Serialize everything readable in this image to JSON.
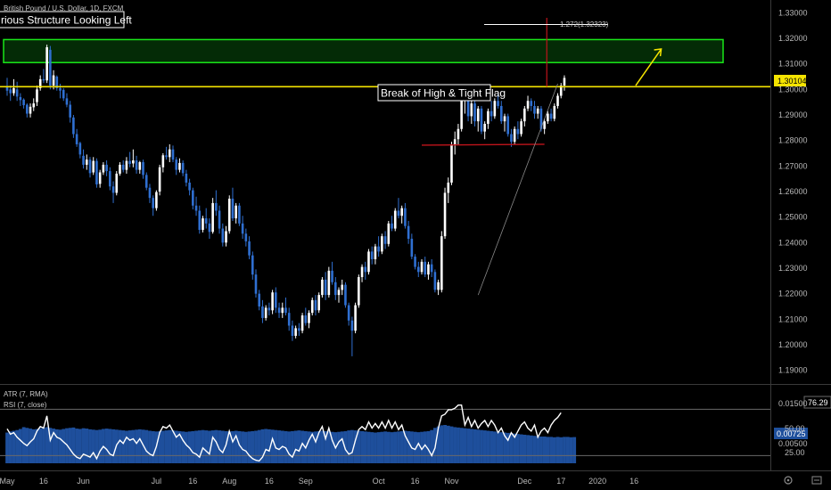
{
  "symbol_title": "British Pound / U.S. Dollar, 1D, FXCM",
  "colors": {
    "background": "#000000",
    "candle_up": "#ffffff",
    "candle_down": "#2f6fd1",
    "trend_line": "#f5e400",
    "zone_border": "#19e619",
    "zone_fill": "#0b7a12",
    "support_line": "#c0141b",
    "target_line": "#c0141b",
    "atr_fill": "#1e4f9c",
    "rsi_line": "#ffffff",
    "axis_text": "#b8b8b8"
  },
  "annotations": {
    "previous_structure": "rious Structure Looking Left",
    "break_label": "Break of High & Tight Flag",
    "fib_label": "1.272(1.32323)"
  },
  "price_badge": "1.30104",
  "indicators": {
    "atr_label": "ATR (7, RMA)",
    "rsi_label": "RSI (7, close)",
    "rsi_value_badge": "76.29",
    "atr_value_badge": "0.00725",
    "scale_labels": [
      "0.01500",
      "50.00",
      "0.00500",
      "25.00"
    ]
  },
  "bottom_icons": [
    "settings-icon",
    "auto-scale-icon"
  ],
  "chart_data": {
    "type": "candlestick",
    "title": "British Pound / U.S. Dollar, 1D, FXCM",
    "y_range": [
      1.185,
      1.335
    ],
    "y_ticks": [
      "1.33000",
      "1.32000",
      "1.31000",
      "1.30000",
      "1.29000",
      "1.28000",
      "1.27000",
      "1.26000",
      "1.25000",
      "1.24000",
      "1.23000",
      "1.22000",
      "1.21000",
      "1.20000",
      "1.19000"
    ],
    "x_ticks": [
      "May",
      "16",
      "Jun",
      "Jul",
      "16",
      "Aug",
      "16",
      "Sep",
      "Oct",
      "16",
      "Nov",
      "Dec",
      "17",
      "2020",
      "16"
    ],
    "x_tick_positions_index": [
      0,
      11,
      23,
      45,
      56,
      67,
      79,
      90,
      112,
      123,
      134,
      156,
      167,
      178,
      189
    ],
    "horizontal_level": 1.30104,
    "resistance_zone": [
      1.3105,
      1.3195
    ],
    "support_line": {
      "start_index": 125,
      "end_index": 162,
      "start_price": 1.2785,
      "end_price": 1.2785
    },
    "candles_ohlc": [
      [
        1.301,
        1.3045,
        1.2975,
        1.2995
      ],
      [
        1.3,
        1.3015,
        1.2955,
        1.2985
      ],
      [
        1.2985,
        1.304,
        1.2975,
        1.3005
      ],
      [
        1.3,
        1.303,
        1.2955,
        1.2972
      ],
      [
        1.297,
        1.2985,
        1.2935,
        1.2958
      ],
      [
        1.296,
        1.2965,
        1.2925,
        1.2938
      ],
      [
        1.294,
        1.2945,
        1.289,
        1.2905
      ],
      [
        1.2905,
        1.2945,
        1.289,
        1.2932
      ],
      [
        1.293,
        1.2965,
        1.2915,
        1.2945
      ],
      [
        1.295,
        1.3015,
        1.2935,
        1.3
      ],
      [
        1.3005,
        1.3055,
        1.2995,
        1.304
      ],
      [
        1.304,
        1.308,
        1.3025,
        1.3035
      ],
      [
        1.3035,
        1.3175,
        1.3025,
        1.3165
      ],
      [
        1.3155,
        1.317,
        1.3,
        1.3015
      ],
      [
        1.3015,
        1.3075,
        1.3,
        1.3055
      ],
      [
        1.305,
        1.3055,
        1.2995,
        1.3005
      ],
      [
        1.3005,
        1.3022,
        1.2965,
        1.2995
      ],
      [
        1.2998,
        1.3005,
        1.2955,
        1.2965
      ],
      [
        1.2965,
        1.2985,
        1.293,
        1.294
      ],
      [
        1.294,
        1.2955,
        1.287,
        1.289
      ],
      [
        1.289,
        1.29,
        1.281,
        1.2825
      ],
      [
        1.2825,
        1.2845,
        1.2775,
        1.2785
      ],
      [
        1.279,
        1.2795,
        1.273,
        1.2745
      ],
      [
        1.274,
        1.2765,
        1.269,
        1.2705
      ],
      [
        1.2705,
        1.2745,
        1.2685,
        1.2725
      ],
      [
        1.2725,
        1.2735,
        1.2655,
        1.2672
      ],
      [
        1.2675,
        1.2735,
        1.2665,
        1.272
      ],
      [
        1.272,
        1.273,
        1.2615,
        1.2628
      ],
      [
        1.263,
        1.2685,
        1.2615,
        1.2675
      ],
      [
        1.2675,
        1.2715,
        1.2665,
        1.2705
      ],
      [
        1.2705,
        1.2722,
        1.266,
        1.268
      ],
      [
        1.268,
        1.2695,
        1.2605,
        1.262
      ],
      [
        1.262,
        1.264,
        1.2555,
        1.2595
      ],
      [
        1.2595,
        1.268,
        1.2585,
        1.267
      ],
      [
        1.267,
        1.2715,
        1.2662,
        1.2705
      ],
      [
        1.2705,
        1.2722,
        1.2675,
        1.2685
      ],
      [
        1.2685,
        1.2735,
        1.267,
        1.272
      ],
      [
        1.272,
        1.2755,
        1.2695,
        1.2708
      ],
      [
        1.271,
        1.2765,
        1.2695,
        1.2722
      ],
      [
        1.2722,
        1.274,
        1.267,
        1.2685
      ],
      [
        1.2685,
        1.272,
        1.267,
        1.2715
      ],
      [
        1.2715,
        1.2725,
        1.265,
        1.2665
      ],
      [
        1.2665,
        1.2675,
        1.2605,
        1.2615
      ],
      [
        1.2615,
        1.263,
        1.2555,
        1.2575
      ],
      [
        1.2575,
        1.2585,
        1.2505,
        1.2535
      ],
      [
        1.2535,
        1.2605,
        1.2525,
        1.2598
      ],
      [
        1.26,
        1.2705,
        1.2585,
        1.2695
      ],
      [
        1.2695,
        1.275,
        1.2675,
        1.2742
      ],
      [
        1.2742,
        1.2775,
        1.2725,
        1.2735
      ],
      [
        1.2735,
        1.2785,
        1.2715,
        1.2765
      ],
      [
        1.2765,
        1.278,
        1.2715,
        1.2725
      ],
      [
        1.2725,
        1.2735,
        1.2665,
        1.2685
      ],
      [
        1.2685,
        1.273,
        1.2675,
        1.2712
      ],
      [
        1.2712,
        1.2722,
        1.266,
        1.2672
      ],
      [
        1.267,
        1.2685,
        1.262,
        1.2635
      ],
      [
        1.2635,
        1.265,
        1.2585,
        1.2605
      ],
      [
        1.2605,
        1.2615,
        1.253,
        1.2545
      ],
      [
        1.2545,
        1.258,
        1.2505,
        1.2525
      ],
      [
        1.2525,
        1.2545,
        1.2435,
        1.245
      ],
      [
        1.245,
        1.2505,
        1.244,
        1.2495
      ],
      [
        1.2495,
        1.2535,
        1.2455,
        1.2475
      ],
      [
        1.2475,
        1.2495,
        1.2415,
        1.2442
      ],
      [
        1.2442,
        1.2575,
        1.2435,
        1.2555
      ],
      [
        1.2555,
        1.2605,
        1.2505,
        1.2525
      ],
      [
        1.2525,
        1.2545,
        1.2435,
        1.2455
      ],
      [
        1.2455,
        1.2475,
        1.2385,
        1.24
      ],
      [
        1.24,
        1.2465,
        1.2385,
        1.2445
      ],
      [
        1.2445,
        1.2585,
        1.2435,
        1.2572
      ],
      [
        1.2572,
        1.2615,
        1.2485,
        1.2495
      ],
      [
        1.2495,
        1.2555,
        1.2475,
        1.2545
      ],
      [
        1.2545,
        1.2555,
        1.2465,
        1.2475
      ],
      [
        1.2475,
        1.2505,
        1.2415,
        1.2435
      ],
      [
        1.2435,
        1.2455,
        1.2385,
        1.2405
      ],
      [
        1.2405,
        1.2425,
        1.2335,
        1.235
      ],
      [
        1.235,
        1.2365,
        1.2255,
        1.2275
      ],
      [
        1.2275,
        1.2295,
        1.2185,
        1.22
      ],
      [
        1.22,
        1.2215,
        1.2135,
        1.215
      ],
      [
        1.215,
        1.2175,
        1.2085,
        1.2105
      ],
      [
        1.2105,
        1.2155,
        1.2095,
        1.2145
      ],
      [
        1.2145,
        1.2165,
        1.2115,
        1.2135
      ],
      [
        1.2135,
        1.2215,
        1.212,
        1.2205
      ],
      [
        1.2205,
        1.2225,
        1.2125,
        1.2145
      ],
      [
        1.2145,
        1.2165,
        1.2105,
        1.2125
      ],
      [
        1.2125,
        1.2165,
        1.2105,
        1.2145
      ],
      [
        1.2145,
        1.2185,
        1.2115,
        1.2125
      ],
      [
        1.2125,
        1.2145,
        1.2055,
        1.2075
      ],
      [
        1.2075,
        1.2095,
        1.2015,
        1.2035
      ],
      [
        1.2035,
        1.2075,
        1.2025,
        1.2065
      ],
      [
        1.2065,
        1.2085,
        1.2035,
        1.2055
      ],
      [
        1.2055,
        1.2125,
        1.2045,
        1.2115
      ],
      [
        1.2115,
        1.2145,
        1.2075,
        1.2085
      ],
      [
        1.2085,
        1.2135,
        1.2065,
        1.2125
      ],
      [
        1.2125,
        1.2185,
        1.2115,
        1.2175
      ],
      [
        1.2175,
        1.2195,
        1.2115,
        1.2135
      ],
      [
        1.2135,
        1.2205,
        1.2125,
        1.2195
      ],
      [
        1.2195,
        1.2265,
        1.2185,
        1.2255
      ],
      [
        1.2255,
        1.2285,
        1.2175,
        1.2195
      ],
      [
        1.2195,
        1.2305,
        1.2185,
        1.229
      ],
      [
        1.229,
        1.2325,
        1.2235,
        1.2245
      ],
      [
        1.2245,
        1.2265,
        1.2175,
        1.2195
      ],
      [
        1.2195,
        1.2225,
        1.2165,
        1.2215
      ],
      [
        1.2215,
        1.2255,
        1.2195,
        1.2235
      ],
      [
        1.2235,
        1.2245,
        1.2145,
        1.2155
      ],
      [
        1.2155,
        1.2165,
        1.2075,
        1.2095
      ],
      [
        1.2095,
        1.211,
        1.1955,
        1.2055
      ],
      [
        1.2055,
        1.2165,
        1.2045,
        1.2155
      ],
      [
        1.2155,
        1.2275,
        1.2145,
        1.2265
      ],
      [
        1.2265,
        1.2315,
        1.2245,
        1.2305
      ],
      [
        1.2305,
        1.2325,
        1.2255,
        1.2285
      ],
      [
        1.2285,
        1.2375,
        1.2275,
        1.2365
      ],
      [
        1.2365,
        1.2385,
        1.2315,
        1.2335
      ],
      [
        1.2335,
        1.2395,
        1.2315,
        1.2385
      ],
      [
        1.2385,
        1.2425,
        1.2345,
        1.2365
      ],
      [
        1.2365,
        1.2435,
        1.2355,
        1.2425
      ],
      [
        1.2425,
        1.2445,
        1.2375,
        1.2395
      ],
      [
        1.2395,
        1.2485,
        1.2385,
        1.2475
      ],
      [
        1.2475,
        1.2505,
        1.2445,
        1.2455
      ],
      [
        1.2455,
        1.2535,
        1.2445,
        1.2525
      ],
      [
        1.2525,
        1.2575,
        1.2495,
        1.2505
      ],
      [
        1.2505,
        1.2545,
        1.2475,
        1.2535
      ],
      [
        1.2535,
        1.2555,
        1.2455,
        1.2465
      ],
      [
        1.2465,
        1.2485,
        1.2395,
        1.2415
      ],
      [
        1.2415,
        1.2435,
        1.2335,
        1.2345
      ],
      [
        1.2345,
        1.2355,
        1.2295,
        1.2305
      ],
      [
        1.2305,
        1.2325,
        1.2265,
        1.2285
      ],
      [
        1.2285,
        1.2335,
        1.2275,
        1.2325
      ],
      [
        1.2325,
        1.2345,
        1.2265,
        1.2275
      ],
      [
        1.2275,
        1.2325,
        1.2255,
        1.2315
      ],
      [
        1.2315,
        1.2335,
        1.2265,
        1.2285
      ],
      [
        1.2285,
        1.2295,
        1.2205,
        1.2215
      ],
      [
        1.2215,
        1.2255,
        1.2195,
        1.2245
      ],
      [
        1.2215,
        1.2445,
        1.2205,
        1.2425
      ],
      [
        1.2425,
        1.2615,
        1.2415,
        1.2595
      ],
      [
        1.2595,
        1.2655,
        1.2555,
        1.2635
      ],
      [
        1.2635,
        1.2795,
        1.2625,
        1.2785
      ],
      [
        1.2785,
        1.2835,
        1.2745,
        1.2805
      ],
      [
        1.2805,
        1.2865,
        1.2785,
        1.2845
      ],
      [
        1.2845,
        1.2965,
        1.2835,
        1.2955
      ],
      [
        1.2955,
        1.3013,
        1.2905,
        1.2985
      ],
      [
        1.2985,
        1.3005,
        1.2875,
        1.2895
      ],
      [
        1.2895,
        1.2965,
        1.2865,
        1.2945
      ],
      [
        1.2945,
        1.2955,
        1.2855,
        1.2875
      ],
      [
        1.2875,
        1.2935,
        1.2835,
        1.2925
      ],
      [
        1.2925,
        1.2935,
        1.2825,
        1.2835
      ],
      [
        1.2835,
        1.2875,
        1.2805,
        1.2865
      ],
      [
        1.2865,
        1.2925,
        1.2845,
        1.2915
      ],
      [
        1.2915,
        1.2955,
        1.2875,
        1.2895
      ],
      [
        1.2895,
        1.2965,
        1.2885,
        1.2955
      ],
      [
        1.2955,
        1.2985,
        1.2925,
        1.2935
      ],
      [
        1.2935,
        1.2955,
        1.2865,
        1.2875
      ],
      [
        1.2875,
        1.2905,
        1.2835,
        1.2895
      ],
      [
        1.2895,
        1.2905,
        1.2815,
        1.2825
      ],
      [
        1.2825,
        1.2845,
        1.2775,
        1.2795
      ],
      [
        1.2795,
        1.2855,
        1.2785,
        1.2845
      ],
      [
        1.2845,
        1.2875,
        1.2805,
        1.2825
      ],
      [
        1.2825,
        1.2885,
        1.2815,
        1.2875
      ],
      [
        1.2875,
        1.2935,
        1.2855,
        1.2925
      ],
      [
        1.2925,
        1.2975,
        1.2915,
        1.2955
      ],
      [
        1.2955,
        1.2965,
        1.2915,
        1.2935
      ],
      [
        1.2935,
        1.2955,
        1.2885,
        1.2905
      ],
      [
        1.2905,
        1.2935,
        1.2885,
        1.2925
      ],
      [
        1.2925,
        1.2935,
        1.2835,
        1.2845
      ],
      [
        1.2845,
        1.2885,
        1.2825,
        1.2875
      ],
      [
        1.2875,
        1.2915,
        1.2865,
        1.2905
      ],
      [
        1.2905,
        1.2925,
        1.2875,
        1.2885
      ],
      [
        1.2885,
        1.2945,
        1.2875,
        1.2935
      ],
      [
        1.2935,
        1.2985,
        1.2925,
        1.2975
      ],
      [
        1.2975,
        1.3025,
        1.2965,
        1.3015
      ],
      [
        1.3015,
        1.3055,
        1.2995,
        1.3045
      ]
    ],
    "atr_values": [
      0.0085,
      0.0088,
      0.009,
      0.0092,
      0.0095,
      0.01,
      0.0098,
      0.0096,
      0.0094,
      0.0095,
      0.0097,
      0.0099,
      0.01,
      0.0098,
      0.0096,
      0.0094,
      0.0093,
      0.0095,
      0.0097,
      0.0098,
      0.0099,
      0.0096,
      0.0095,
      0.0097,
      0.0096,
      0.0094,
      0.0093,
      0.0092,
      0.0093,
      0.0095,
      0.0096,
      0.0095,
      0.0094,
      0.0093,
      0.0092,
      0.0091,
      0.009,
      0.0091,
      0.0092,
      0.0093,
      0.0094,
      0.0093,
      0.0092,
      0.009,
      0.0089,
      0.0088,
      0.0089,
      0.009,
      0.0091,
      0.0092,
      0.0091,
      0.009,
      0.0089,
      0.0088,
      0.0087,
      0.0088,
      0.0089,
      0.009,
      0.0091,
      0.0092,
      0.0091,
      0.009,
      0.0091,
      0.0092,
      0.0091,
      0.009,
      0.0089,
      0.0088,
      0.0089,
      0.009,
      0.0089,
      0.0088,
      0.0087,
      0.0088,
      0.0089,
      0.009,
      0.0092,
      0.0094,
      0.0095,
      0.0094,
      0.0093,
      0.0092,
      0.0091,
      0.009,
      0.0089,
      0.0088,
      0.0089,
      0.009,
      0.0091,
      0.009,
      0.0089,
      0.0088,
      0.0087,
      0.0088,
      0.0089,
      0.009,
      0.0089,
      0.0088,
      0.0087,
      0.0086,
      0.0087,
      0.0088,
      0.0089,
      0.0091,
      0.0092,
      0.0091,
      0.009,
      0.0089,
      0.0088,
      0.0087,
      0.0086,
      0.0085,
      0.0086,
      0.0087,
      0.0088,
      0.0087,
      0.0086,
      0.0087,
      0.0088,
      0.0089,
      0.009,
      0.0089,
      0.0088,
      0.0087,
      0.0086,
      0.0087,
      0.0088,
      0.0089,
      0.0092,
      0.0098,
      0.0102,
      0.0105,
      0.0106,
      0.0104,
      0.0102,
      0.01,
      0.0099,
      0.0098,
      0.0097,
      0.0096,
      0.0095,
      0.0094,
      0.0093,
      0.0092,
      0.0091,
      0.009,
      0.0089,
      0.0088,
      0.0087,
      0.0086,
      0.0085,
      0.0084,
      0.0083,
      0.0082,
      0.0081,
      0.008,
      0.0079,
      0.0078,
      0.0077,
      0.0076,
      0.0075,
      0.0074,
      0.0074,
      0.0073,
      0.0073,
      0.0072,
      0.0073,
      0.0072,
      0.0073,
      0.0073,
      0.0072,
      0.00725
    ],
    "rsi_values": [
      55,
      48,
      50,
      44,
      40,
      36,
      33,
      38,
      42,
      52,
      58,
      56,
      72,
      40,
      50,
      44,
      42,
      38,
      34,
      28,
      22,
      18,
      16,
      22,
      20,
      18,
      24,
      16,
      26,
      32,
      28,
      22,
      20,
      34,
      40,
      36,
      44,
      40,
      42,
      36,
      42,
      34,
      26,
      22,
      20,
      32,
      50,
      58,
      56,
      60,
      52,
      44,
      48,
      40,
      34,
      30,
      24,
      22,
      18,
      30,
      26,
      22,
      44,
      38,
      28,
      24,
      34,
      52,
      38,
      46,
      34,
      28,
      26,
      20,
      16,
      14,
      13,
      18,
      28,
      26,
      42,
      30,
      28,
      32,
      30,
      22,
      18,
      28,
      26,
      36,
      30,
      40,
      48,
      38,
      50,
      58,
      42,
      56,
      40,
      30,
      38,
      42,
      28,
      22,
      24,
      40,
      54,
      58,
      54,
      64,
      56,
      62,
      56,
      64,
      56,
      66,
      56,
      64,
      54,
      60,
      46,
      38,
      30,
      28,
      36,
      28,
      34,
      28,
      20,
      30,
      56,
      72,
      74,
      80,
      80,
      82,
      86,
      86,
      60,
      70,
      58,
      66,
      56,
      62,
      66,
      58,
      66,
      60,
      50,
      56,
      46,
      40,
      50,
      44,
      52,
      60,
      64,
      56,
      52,
      60,
      44,
      52,
      56,
      50,
      60,
      66,
      70,
      76
    ]
  }
}
